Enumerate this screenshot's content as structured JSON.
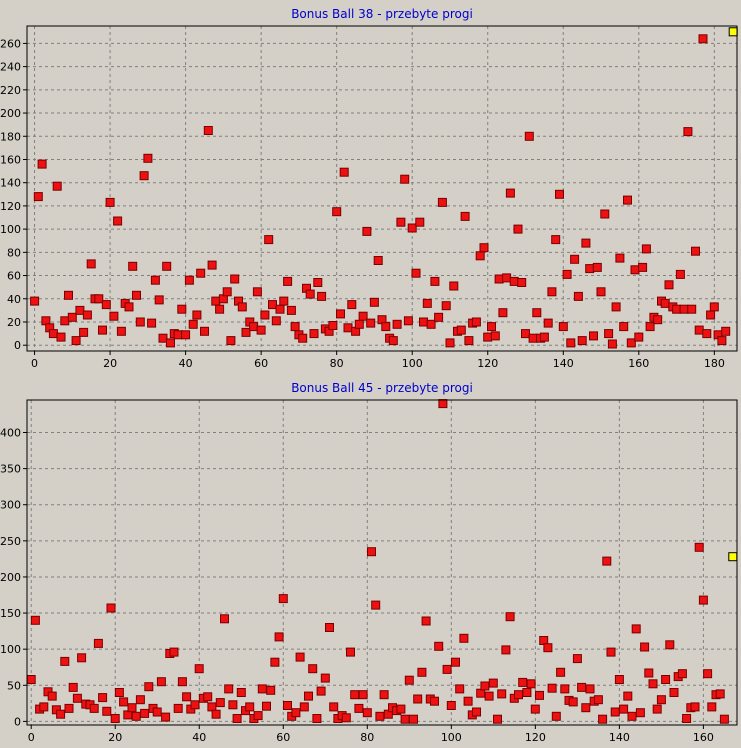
{
  "chart_data": [
    {
      "type": "scatter",
      "title": "Bonus Ball 38 - przebyte progi",
      "xlim": [
        -2,
        186
      ],
      "ylim": [
        -5,
        275
      ],
      "xticks": [
        0,
        20,
        40,
        60,
        80,
        100,
        120,
        140,
        160,
        180
      ],
      "yticks": [
        0,
        20,
        40,
        60,
        80,
        100,
        120,
        140,
        160,
        180,
        200,
        220,
        240,
        260
      ],
      "marker_color": "#ee1111",
      "highlight_color": "#ffff00",
      "grid": true,
      "points": [
        [
          0,
          38
        ],
        [
          1,
          128
        ],
        [
          2,
          156
        ],
        [
          3,
          21
        ],
        [
          4,
          15
        ],
        [
          5,
          10
        ],
        [
          6,
          137
        ],
        [
          7,
          7
        ],
        [
          8,
          21
        ],
        [
          9,
          43
        ],
        [
          10,
          24
        ],
        [
          11,
          4
        ],
        [
          12,
          30
        ],
        [
          13,
          11
        ],
        [
          14,
          26
        ],
        [
          15,
          70
        ],
        [
          16,
          40
        ],
        [
          17,
          40
        ],
        [
          18,
          13
        ],
        [
          19,
          35
        ],
        [
          20,
          123
        ],
        [
          21,
          25
        ],
        [
          22,
          107
        ],
        [
          23,
          12
        ],
        [
          24,
          36
        ],
        [
          25,
          33
        ],
        [
          26,
          68
        ],
        [
          27,
          43
        ],
        [
          28,
          20
        ],
        [
          29,
          146
        ],
        [
          30,
          161
        ],
        [
          31,
          19
        ],
        [
          32,
          56
        ],
        [
          33,
          39
        ],
        [
          34,
          6
        ],
        [
          35,
          68
        ],
        [
          36,
          2
        ],
        [
          37,
          10
        ],
        [
          38,
          9
        ],
        [
          39,
          31
        ],
        [
          40,
          9
        ],
        [
          41,
          56
        ],
        [
          42,
          18
        ],
        [
          43,
          26
        ],
        [
          44,
          62
        ],
        [
          45,
          12
        ],
        [
          46,
          185
        ],
        [
          47,
          69
        ],
        [
          48,
          38
        ],
        [
          49,
          31
        ],
        [
          50,
          40
        ],
        [
          51,
          46
        ],
        [
          52,
          4
        ],
        [
          53,
          57
        ],
        [
          54,
          38
        ],
        [
          55,
          33
        ],
        [
          56,
          11
        ],
        [
          57,
          20
        ],
        [
          58,
          16
        ],
        [
          59,
          46
        ],
        [
          60,
          13
        ],
        [
          61,
          26
        ],
        [
          62,
          91
        ],
        [
          63,
          35
        ],
        [
          64,
          21
        ],
        [
          65,
          31
        ],
        [
          66,
          38
        ],
        [
          67,
          55
        ],
        [
          68,
          30
        ],
        [
          69,
          16
        ],
        [
          70,
          9
        ],
        [
          71,
          6
        ],
        [
          72,
          49
        ],
        [
          73,
          44
        ],
        [
          74,
          10
        ],
        [
          75,
          54
        ],
        [
          76,
          42
        ],
        [
          77,
          14
        ],
        [
          78,
          12
        ],
        [
          79,
          17
        ],
        [
          80,
          115
        ],
        [
          81,
          27
        ],
        [
          82,
          149
        ],
        [
          83,
          15
        ],
        [
          84,
          35
        ],
        [
          85,
          12
        ],
        [
          86,
          18
        ],
        [
          87,
          25
        ],
        [
          88,
          98
        ],
        [
          89,
          19
        ],
        [
          90,
          37
        ],
        [
          91,
          73
        ],
        [
          92,
          22
        ],
        [
          93,
          16
        ],
        [
          94,
          6
        ],
        [
          95,
          4
        ],
        [
          96,
          18
        ],
        [
          97,
          106
        ],
        [
          98,
          143
        ],
        [
          99,
          21
        ],
        [
          100,
          101
        ],
        [
          101,
          62
        ],
        [
          102,
          106
        ],
        [
          103,
          20
        ],
        [
          104,
          36
        ],
        [
          105,
          18
        ],
        [
          106,
          55
        ],
        [
          107,
          24
        ],
        [
          108,
          123
        ],
        [
          109,
          34
        ],
        [
          110,
          2
        ],
        [
          111,
          51
        ],
        [
          112,
          12
        ],
        [
          113,
          13
        ],
        [
          114,
          111
        ],
        [
          115,
          4
        ],
        [
          116,
          19
        ],
        [
          117,
          20
        ],
        [
          118,
          77
        ],
        [
          119,
          84
        ],
        [
          120,
          7
        ],
        [
          121,
          16
        ],
        [
          122,
          8
        ],
        [
          123,
          57
        ],
        [
          124,
          28
        ],
        [
          125,
          58
        ],
        [
          126,
          131
        ],
        [
          127,
          55
        ],
        [
          128,
          100
        ],
        [
          129,
          54
        ],
        [
          130,
          10
        ],
        [
          131,
          180
        ],
        [
          132,
          6
        ],
        [
          133,
          28
        ],
        [
          134,
          6
        ],
        [
          135,
          7
        ],
        [
          136,
          19
        ],
        [
          137,
          46
        ],
        [
          138,
          91
        ],
        [
          139,
          130
        ],
        [
          140,
          16
        ],
        [
          141,
          61
        ],
        [
          142,
          2
        ],
        [
          143,
          74
        ],
        [
          144,
          42
        ],
        [
          145,
          4
        ],
        [
          146,
          88
        ],
        [
          147,
          66
        ],
        [
          148,
          8
        ],
        [
          149,
          67
        ],
        [
          150,
          46
        ],
        [
          151,
          113
        ],
        [
          152,
          10
        ],
        [
          153,
          1
        ],
        [
          154,
          33
        ],
        [
          155,
          75
        ],
        [
          156,
          16
        ],
        [
          157,
          125
        ],
        [
          158,
          2
        ],
        [
          159,
          65
        ],
        [
          160,
          7
        ],
        [
          161,
          67
        ],
        [
          162,
          83
        ],
        [
          163,
          16
        ],
        [
          164,
          24
        ],
        [
          165,
          22
        ],
        [
          166,
          38
        ],
        [
          167,
          36
        ],
        [
          168,
          52
        ],
        [
          169,
          33
        ],
        [
          170,
          31
        ],
        [
          171,
          61
        ],
        [
          172,
          31
        ],
        [
          173,
          184
        ],
        [
          174,
          31
        ],
        [
          175,
          81
        ],
        [
          176,
          13
        ],
        [
          177,
          264
        ],
        [
          178,
          10
        ],
        [
          179,
          26
        ],
        [
          180,
          33
        ],
        [
          181,
          9
        ],
        [
          182,
          4
        ],
        [
          183,
          12
        ]
      ],
      "highlight_point": [
        185,
        270
      ]
    },
    {
      "type": "scatter",
      "title": "Bonus Ball 45 - przebyte progi",
      "xlim": [
        -1,
        168
      ],
      "ylim": [
        -5,
        445
      ],
      "xticks": [
        0,
        20,
        40,
        60,
        80,
        100,
        120,
        140,
        160
      ],
      "yticks": [
        0,
        50,
        100,
        150,
        200,
        250,
        300,
        350,
        400
      ],
      "marker_color": "#ee1111",
      "highlight_color": "#ffff00",
      "grid": true,
      "points": [
        [
          0,
          58
        ],
        [
          1,
          140
        ],
        [
          2,
          17
        ],
        [
          3,
          20
        ],
        [
          4,
          41
        ],
        [
          5,
          35
        ],
        [
          6,
          16
        ],
        [
          7,
          10
        ],
        [
          8,
          83
        ],
        [
          9,
          18
        ],
        [
          10,
          47
        ],
        [
          11,
          32
        ],
        [
          12,
          88
        ],
        [
          13,
          24
        ],
        [
          14,
          23
        ],
        [
          15,
          18
        ],
        [
          16,
          108
        ],
        [
          17,
          33
        ],
        [
          18,
          14
        ],
        [
          19,
          157
        ],
        [
          20,
          4
        ],
        [
          21,
          40
        ],
        [
          22,
          27
        ],
        [
          23,
          9
        ],
        [
          24,
          19
        ],
        [
          25,
          7
        ],
        [
          26,
          30
        ],
        [
          27,
          11
        ],
        [
          28,
          48
        ],
        [
          29,
          18
        ],
        [
          30,
          13
        ],
        [
          31,
          55
        ],
        [
          32,
          6
        ],
        [
          33,
          94
        ],
        [
          34,
          96
        ],
        [
          35,
          18
        ],
        [
          36,
          55
        ],
        [
          37,
          34
        ],
        [
          38,
          17
        ],
        [
          39,
          23
        ],
        [
          40,
          73
        ],
        [
          41,
          32
        ],
        [
          42,
          34
        ],
        [
          43,
          20
        ],
        [
          44,
          10
        ],
        [
          45,
          26
        ],
        [
          46,
          142
        ],
        [
          47,
          45
        ],
        [
          48,
          23
        ],
        [
          49,
          4
        ],
        [
          50,
          40
        ],
        [
          51,
          15
        ],
        [
          52,
          20
        ],
        [
          53,
          4
        ],
        [
          54,
          8
        ],
        [
          55,
          45
        ],
        [
          56,
          21
        ],
        [
          57,
          43
        ],
        [
          58,
          82
        ],
        [
          59,
          117
        ],
        [
          60,
          170
        ],
        [
          61,
          22
        ],
        [
          62,
          7
        ],
        [
          63,
          12
        ],
        [
          64,
          89
        ],
        [
          65,
          20
        ],
        [
          66,
          35
        ],
        [
          67,
          73
        ],
        [
          68,
          4
        ],
        [
          69,
          42
        ],
        [
          70,
          60
        ],
        [
          71,
          130
        ],
        [
          72,
          20
        ],
        [
          73,
          4
        ],
        [
          74,
          8
        ],
        [
          75,
          5
        ],
        [
          76,
          96
        ],
        [
          77,
          37
        ],
        [
          78,
          18
        ],
        [
          79,
          37
        ],
        [
          80,
          12
        ],
        [
          81,
          235
        ],
        [
          82,
          161
        ],
        [
          83,
          7
        ],
        [
          84,
          37
        ],
        [
          85,
          10
        ],
        [
          86,
          19
        ],
        [
          87,
          15
        ],
        [
          88,
          17
        ],
        [
          89,
          3
        ],
        [
          90,
          57
        ],
        [
          91,
          3
        ],
        [
          92,
          31
        ],
        [
          93,
          68
        ],
        [
          94,
          139
        ],
        [
          95,
          31
        ],
        [
          96,
          28
        ],
        [
          97,
          104
        ],
        [
          98,
          440
        ],
        [
          99,
          72
        ],
        [
          100,
          22
        ],
        [
          101,
          82
        ],
        [
          102,
          45
        ],
        [
          103,
          115
        ],
        [
          104,
          28
        ],
        [
          105,
          9
        ],
        [
          106,
          13
        ],
        [
          107,
          39
        ],
        [
          108,
          49
        ],
        [
          109,
          35
        ],
        [
          110,
          53
        ],
        [
          111,
          3
        ],
        [
          112,
          38
        ],
        [
          113,
          99
        ],
        [
          114,
          145
        ],
        [
          115,
          32
        ],
        [
          116,
          37
        ],
        [
          117,
          54
        ],
        [
          118,
          40
        ],
        [
          119,
          52
        ],
        [
          120,
          17
        ],
        [
          121,
          36
        ],
        [
          122,
          112
        ],
        [
          123,
          102
        ],
        [
          124,
          46
        ],
        [
          125,
          7
        ],
        [
          126,
          68
        ],
        [
          127,
          45
        ],
        [
          128,
          29
        ],
        [
          129,
          27
        ],
        [
          130,
          87
        ],
        [
          131,
          47
        ],
        [
          132,
          19
        ],
        [
          133,
          45
        ],
        [
          134,
          28
        ],
        [
          135,
          30
        ],
        [
          136,
          3
        ],
        [
          137,
          222
        ],
        [
          138,
          96
        ],
        [
          139,
          13
        ],
        [
          140,
          58
        ],
        [
          141,
          17
        ],
        [
          142,
          35
        ],
        [
          143,
          7
        ],
        [
          144,
          128
        ],
        [
          145,
          12
        ],
        [
          146,
          103
        ],
        [
          147,
          67
        ],
        [
          148,
          52
        ],
        [
          149,
          17
        ],
        [
          150,
          30
        ],
        [
          151,
          58
        ],
        [
          152,
          106
        ],
        [
          153,
          40
        ],
        [
          154,
          62
        ],
        [
          155,
          66
        ],
        [
          156,
          4
        ],
        [
          157,
          19
        ],
        [
          158,
          20
        ],
        [
          159,
          241
        ],
        [
          160,
          168
        ],
        [
          161,
          66
        ],
        [
          162,
          20
        ],
        [
          163,
          37
        ],
        [
          164,
          38
        ],
        [
          165,
          3
        ]
      ],
      "highlight_point": [
        167,
        228
      ]
    }
  ]
}
